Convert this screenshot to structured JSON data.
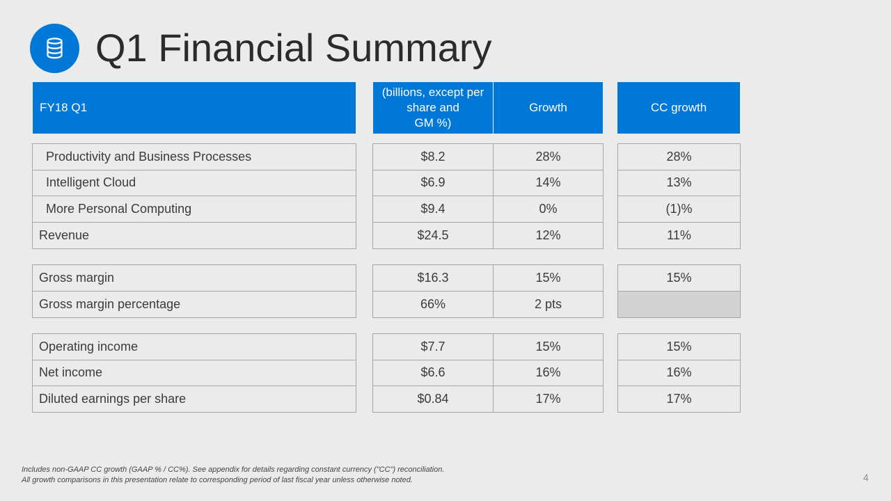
{
  "slide": {
    "title": "Q1 Financial Summary",
    "icon": "database-icon",
    "page_number": "4",
    "accent_color": "#0078d7"
  },
  "table": {
    "headers": {
      "period": "FY18 Q1",
      "amount_line1": "(billions, except per",
      "amount_line2": "share and",
      "amount_line3": "GM %)",
      "growth": "Growth",
      "cc_growth": "CC growth"
    },
    "groups": [
      {
        "rows": [
          {
            "label": "Productivity and Business Processes",
            "amount": "$8.2",
            "growth": "28%",
            "cc_growth": "28%"
          },
          {
            "label": "Intelligent Cloud",
            "amount": "$6.9",
            "growth": "14%",
            "cc_growth": "13%"
          },
          {
            "label": "More Personal Computing",
            "amount": "$9.4",
            "growth": "0%",
            "cc_growth": "(1)%"
          },
          {
            "label": "Revenue",
            "amount": "$24.5",
            "growth": "12%",
            "cc_growth": "11%"
          }
        ]
      },
      {
        "rows": [
          {
            "label": "Gross margin",
            "amount": "$16.3",
            "growth": "15%",
            "cc_growth": "15%"
          },
          {
            "label": "Gross margin percentage",
            "amount": "66%",
            "growth": "2 pts",
            "cc_growth": ""
          }
        ]
      },
      {
        "rows": [
          {
            "label": "Operating income",
            "amount": "$7.7",
            "growth": "15%",
            "cc_growth": "15%"
          },
          {
            "label": "Net income",
            "amount": "$6.6",
            "growth": "16%",
            "cc_growth": "16%"
          },
          {
            "label": "Diluted earnings per share",
            "amount": "$0.84",
            "growth": "17%",
            "cc_growth": "17%"
          }
        ]
      }
    ]
  },
  "footnote": {
    "line1": "Includes non-GAAP CC growth (GAAP % / CC%). See appendix for details regarding constant currency (\"CC\") reconciliation.",
    "line2": "All growth comparisons in this presentation relate to corresponding period of last fiscal year unless otherwise noted."
  }
}
